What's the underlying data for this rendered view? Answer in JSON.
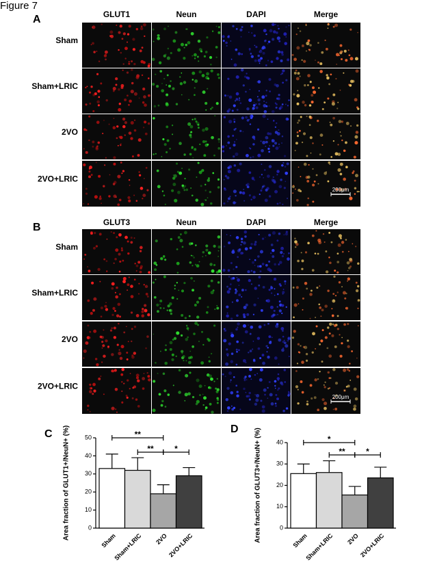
{
  "figure_title": "Figure 7",
  "panels": [
    {
      "label": "A",
      "columns": [
        "GLUT1",
        "Neun",
        "DAPI",
        "Merge"
      ],
      "rows": [
        "Sham",
        "Sham+LRIC",
        "2VO",
        "2VO+LRIC"
      ],
      "scale_bar": "200μm"
    },
    {
      "label": "B",
      "columns": [
        "GLUT3",
        "Neun",
        "DAPI",
        "Merge"
      ],
      "rows": [
        "Sham",
        "Sham+LRIC",
        "2VO",
        "2VO+LRIC"
      ],
      "scale_bar": "200μm"
    }
  ],
  "chart_data": [
    {
      "type": "bar",
      "panel_label": "C",
      "y_label": "Area fraction of GLUT1+/NeuN+ (%)",
      "categories": [
        "Sham",
        "Sham+LRIC",
        "2VO",
        "2VO+LRIC"
      ],
      "values": [
        33,
        32,
        19,
        29
      ],
      "errors": [
        8,
        7,
        5,
        4.5
      ],
      "colors": [
        "#ffffff",
        "#d9d9d9",
        "#a6a6a6",
        "#404040"
      ],
      "ylim": [
        0,
        50
      ],
      "yticks": [
        0,
        10,
        20,
        30,
        40,
        50
      ],
      "annotations": [
        {
          "text": "**",
          "from": "Sham",
          "to": "2VO"
        },
        {
          "text": "**",
          "from": "Sham+LRIC",
          "to": "2VO"
        },
        {
          "text": "*",
          "from": "2VO",
          "to": "2VO+LRIC"
        }
      ]
    },
    {
      "type": "bar",
      "panel_label": "D",
      "y_label": "Area fraction of GLUT3+/NeuN+ (%)",
      "categories": [
        "Sham",
        "Sham+LRIC",
        "2VO",
        "2VO+LRIC"
      ],
      "values": [
        25.5,
        26,
        15.5,
        23.5
      ],
      "errors": [
        4.5,
        5.5,
        4,
        5
      ],
      "colors": [
        "#ffffff",
        "#d9d9d9",
        "#a6a6a6",
        "#404040"
      ],
      "ylim": [
        0,
        40
      ],
      "yticks": [
        0,
        10,
        20,
        30,
        40
      ],
      "annotations": [
        {
          "text": "*",
          "from": "Sham",
          "to": "2VO"
        },
        {
          "text": "**",
          "from": "Sham+LRIC",
          "to": "2VO"
        },
        {
          "text": "*",
          "from": "2VO",
          "to": "2VO+LRIC"
        }
      ]
    }
  ]
}
